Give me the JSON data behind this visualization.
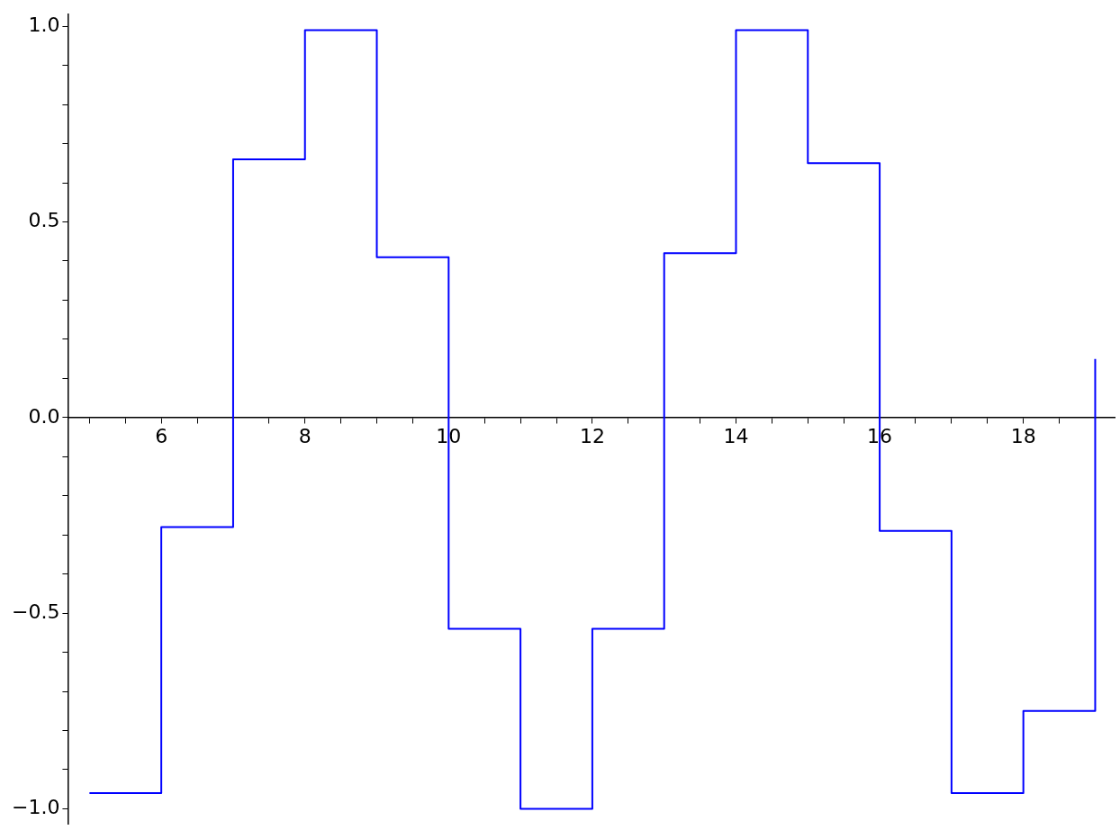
{
  "chart_data": {
    "type": "step",
    "x": [
      5,
      6,
      7,
      8,
      9,
      10,
      11,
      12,
      13,
      14,
      15,
      16,
      17,
      18,
      19
    ],
    "series": [
      {
        "color": "#0000ff",
        "values": [
          -0.96,
          -0.28,
          0.66,
          0.99,
          0.41,
          -0.54,
          -1.0,
          -0.54,
          0.42,
          0.99,
          0.65,
          -0.29,
          -0.96,
          -0.75,
          0.15
        ]
      }
    ],
    "xlim": [
      4.7,
      19.27
    ],
    "ylim": [
      -1.04,
      1.03
    ],
    "xticks": [
      {
        "value": 5,
        "label": null
      },
      {
        "value": 5.5,
        "label": null
      },
      6,
      {
        "value": 6.5,
        "label": null
      },
      {
        "value": 7,
        "label": null
      },
      {
        "value": 7.5,
        "label": null
      },
      8,
      {
        "value": 8.5,
        "label": null
      },
      {
        "value": 9,
        "label": null
      },
      {
        "value": 9.5,
        "label": null
      },
      10,
      {
        "value": 10.5,
        "label": null
      },
      {
        "value": 11,
        "label": null
      },
      {
        "value": 11.5,
        "label": null
      },
      12,
      {
        "value": 12.5,
        "label": null
      },
      {
        "value": 13,
        "label": null
      },
      {
        "value": 13.5,
        "label": null
      },
      14,
      {
        "value": 14.5,
        "label": null
      },
      {
        "value": 15,
        "label": null
      },
      {
        "value": 15.5,
        "label": null
      },
      16,
      {
        "value": 16.5,
        "label": null
      },
      {
        "value": 17,
        "label": null
      },
      {
        "value": 17.5,
        "label": null
      },
      18,
      {
        "value": 18.5,
        "label": null
      },
      {
        "value": 19,
        "label": null
      }
    ],
    "yticks": [
      {
        "value": -1,
        "label": "−1.0"
      },
      {
        "value": -0.9,
        "label": null
      },
      {
        "value": -0.8,
        "label": null
      },
      {
        "value": -0.7,
        "label": null
      },
      {
        "value": -0.6,
        "label": null
      },
      {
        "value": -0.5,
        "label": "−0.5"
      },
      {
        "value": -0.4,
        "label": null
      },
      {
        "value": -0.3,
        "label": null
      },
      {
        "value": -0.2,
        "label": null
      },
      {
        "value": -0.1,
        "label": null
      },
      {
        "value": 0,
        "label": "0.0"
      },
      {
        "value": 0.1,
        "label": null
      },
      {
        "value": 0.2,
        "label": null
      },
      {
        "value": 0.3,
        "label": null
      },
      {
        "value": 0.4,
        "label": null
      },
      {
        "value": 0.5,
        "label": "0.5"
      },
      {
        "value": 0.6,
        "label": null
      },
      {
        "value": 0.7,
        "label": null
      },
      {
        "value": 0.8,
        "label": null
      },
      {
        "value": 0.9,
        "label": null
      },
      {
        "value": 1,
        "label": "1.0"
      }
    ],
    "grid": false,
    "legend": false
  }
}
